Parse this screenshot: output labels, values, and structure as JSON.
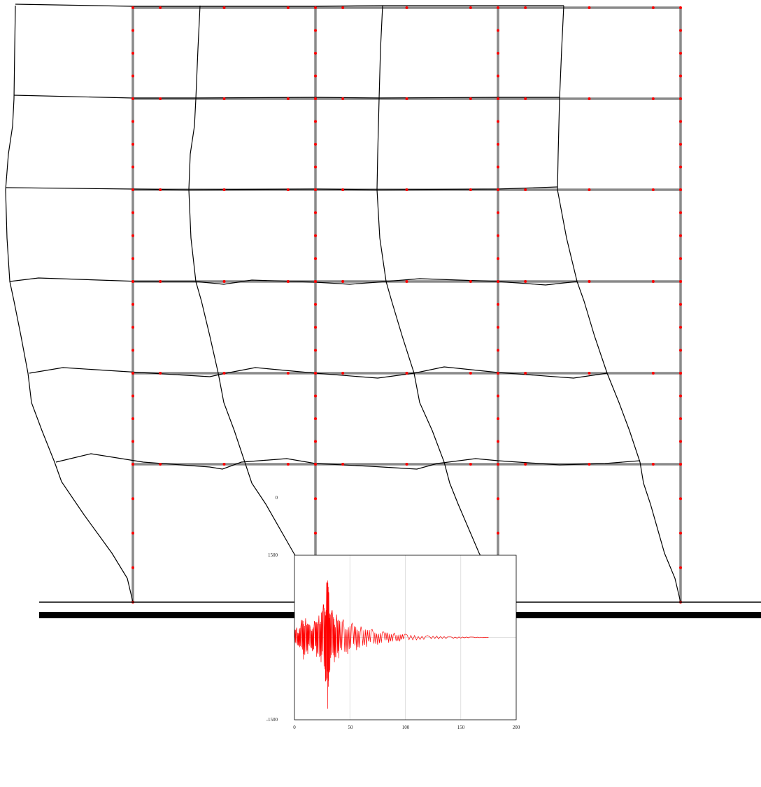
{
  "colors": {
    "background": "#ffffff",
    "undeformed_frame": "#8a8a8a",
    "deformed_frame": "#000000",
    "nodes": "#ff0000",
    "ground": "#000000",
    "signal": "#ff0000",
    "plot_grid": "#d8d8d8",
    "plot_border": "#000000"
  },
  "frame": {
    "bays": 3,
    "stories": 6,
    "node_color": "red",
    "deformed_shape_color": "black"
  },
  "ground_motion_plot": {
    "y_tick_labels": [
      "1500",
      "0",
      "-1500"
    ],
    "x_tick_labels": [
      "0",
      "50",
      "100",
      "150",
      "200"
    ]
  },
  "chart_data": {
    "type": "line",
    "series": [
      {
        "x": [
          0,
          2,
          4,
          6,
          8,
          10,
          12,
          14,
          16,
          18,
          20,
          22,
          24,
          26,
          28,
          29,
          30,
          31,
          32,
          34,
          36,
          38,
          40,
          44,
          48,
          52,
          56,
          60,
          65,
          70,
          75,
          80,
          85,
          90,
          95,
          100,
          110,
          120,
          130,
          140,
          150,
          160,
          170,
          175
        ],
        "y": [
          0,
          180,
          -150,
          250,
          -400,
          350,
          -300,
          200,
          -250,
          300,
          -350,
          400,
          -450,
          600,
          -800,
          1000,
          -1300,
          800,
          -600,
          500,
          -450,
          420,
          -380,
          330,
          -300,
          260,
          -230,
          200,
          -170,
          150,
          -130,
          110,
          -95,
          80,
          -70,
          60,
          -45,
          35,
          -25,
          18,
          -12,
          8,
          -5,
          0
        ]
      }
    ],
    "xlim": [
      0,
      200
    ],
    "ylim": [
      -1500,
      1500
    ],
    "xticks": [
      0,
      50,
      100,
      150,
      200
    ],
    "yticks": [
      -1500,
      0,
      1500
    ],
    "grid": true
  }
}
